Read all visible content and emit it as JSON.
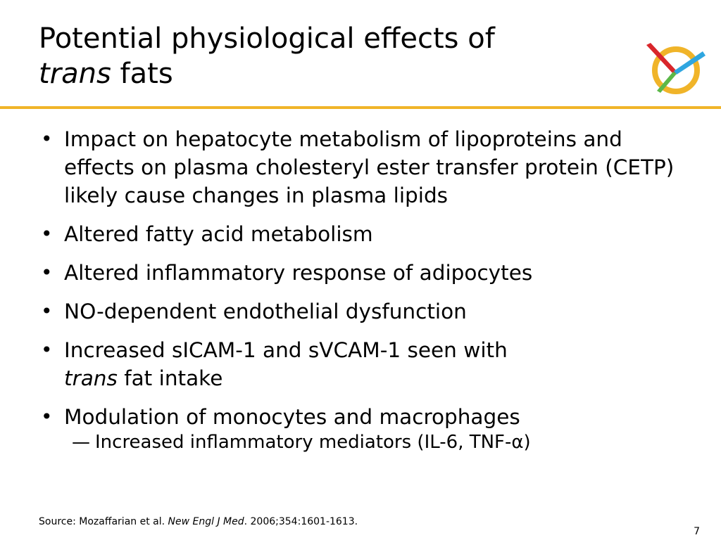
{
  "slide": {
    "title_line1": "Potential physiological effects of",
    "title_line2_italic": "trans",
    "title_line2_rest": " fats"
  },
  "bullets": [
    {
      "text": "Impact on hepatocyte metabolism of lipoproteins and effects on plasma cholesteryl ester transfer protein (CETP) likely cause changes in plasma lipids"
    },
    {
      "text": "Altered fatty acid metabolism"
    },
    {
      "text": "Altered inflammatory response of adipocytes"
    },
    {
      "text": "NO-dependent endothelial dysfunction"
    },
    {
      "text_before_break": "Increased sICAM-1 and sVCAM-1 seen with",
      "italic": "trans",
      "text_after": " fat intake"
    },
    {
      "text": "Modulation of monocytes and macrophages",
      "sub": {
        "text": "Increased inflammatory mediators (IL-6, TNF-α)"
      }
    }
  ],
  "source": {
    "prefix": "Source: Mozaffarian et al. ",
    "journal": "New Engl J Med",
    "suffix": ". 2006;354:1601-1613."
  },
  "page_number": "7",
  "colors": {
    "accent_rule": "#f0b429",
    "logo_ring": "#f0b429",
    "logo_red": "#d9262b",
    "logo_blue": "#2fa6e0",
    "logo_green": "#5bb848"
  },
  "icons": {
    "logo": "ring-with-crossed-lines-logo"
  }
}
